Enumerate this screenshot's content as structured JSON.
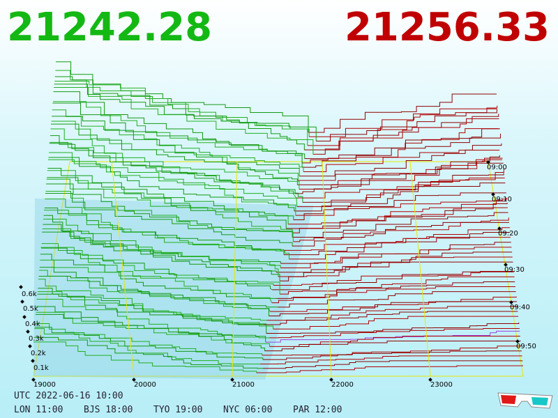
{
  "header": {
    "bid_price": "21242.28",
    "ask_price": "21256.33"
  },
  "axes": {
    "price_ticks": [
      "19000",
      "20000",
      "21000",
      "22000",
      "23000"
    ],
    "depth_ticks": [
      "0.1k",
      "0.2k",
      "0.3k",
      "0.4k",
      "0.5k",
      "0.6k"
    ],
    "time_ticks": [
      "09:00",
      "09:10",
      "09:20",
      "09:30",
      "09:40",
      "09:50"
    ]
  },
  "footer": {
    "utc": "UTC 2022-06-16 10:00",
    "cities": [
      "LON 11:00",
      "BJS 18:00",
      "TYO 19:00",
      "NYC 06:00",
      "PAR 12:00"
    ]
  }
}
